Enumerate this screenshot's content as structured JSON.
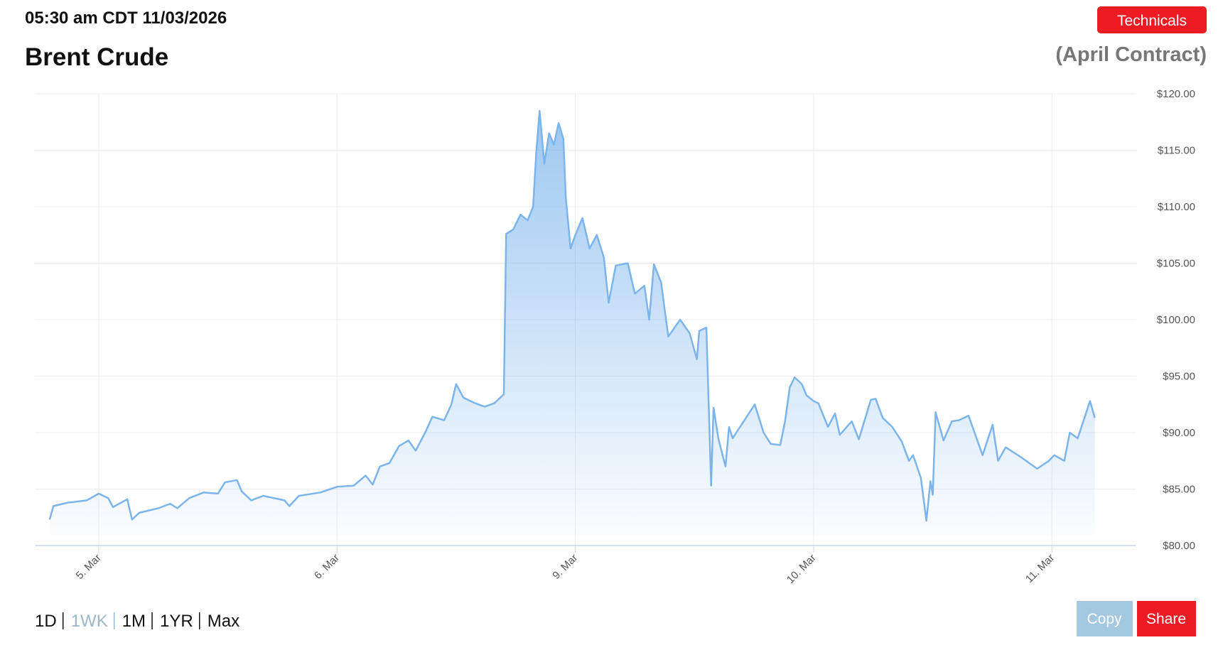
{
  "timestamp": "05:30 am CDT 11/03/2026",
  "technicals_button": "Technicals",
  "ranges": [
    "1D",
    "1WK",
    "1M",
    "1YR",
    "Max"
  ],
  "active_range_index": 1,
  "copy_button": "Copy",
  "share_button": "Share",
  "chart_data": {
    "type": "line",
    "title": "Brent Crude",
    "subtitle": "(April Contract)",
    "x": [
      -0.206,
      -0.19,
      -0.13,
      -0.05,
      0.0,
      0.04,
      0.06,
      0.12,
      0.14,
      0.17,
      0.25,
      0.3,
      0.33,
      0.38,
      0.44,
      0.5,
      0.53,
      0.58,
      0.6,
      0.64,
      0.69,
      0.78,
      0.8,
      0.84,
      0.93,
      1.0,
      1.07,
      1.12,
      1.15,
      1.18,
      1.22,
      1.26,
      1.3,
      1.33,
      1.37,
      1.4,
      1.45,
      1.48,
      1.5,
      1.53,
      1.58,
      1.62,
      1.66,
      1.7,
      1.71,
      1.74,
      1.77,
      1.8,
      1.823,
      1.836,
      1.85,
      1.87,
      1.89,
      1.91,
      1.93,
      1.95,
      1.96,
      1.98,
      2.0,
      2.03,
      2.06,
      2.09,
      2.12,
      2.14,
      2.17,
      2.22,
      2.25,
      2.29,
      2.31,
      2.33,
      2.36,
      2.39,
      2.44,
      2.48,
      2.51,
      2.52,
      2.55,
      2.57,
      2.58,
      2.6,
      2.63,
      2.645,
      2.66,
      2.753,
      2.79,
      2.82,
      2.86,
      2.88,
      2.9,
      2.92,
      2.95,
      2.97,
      3.0,
      3.02,
      3.06,
      3.09,
      3.11,
      3.16,
      3.19,
      3.24,
      3.26,
      3.29,
      3.33,
      3.37,
      3.4,
      3.417,
      3.45,
      3.473,
      3.49,
      3.5,
      3.512,
      3.545,
      3.58,
      3.61,
      3.65,
      3.709,
      3.751,
      3.774,
      3.806,
      3.872,
      3.938,
      3.987,
      4.01,
      4.052,
      4.075,
      4.108,
      4.16,
      4.18
    ],
    "series": [
      {
        "name": "Brent Crude",
        "color": "#7cb5ec",
        "values": [
          82.3,
          83.5,
          83.8,
          84.0,
          84.6,
          84.2,
          83.4,
          84.1,
          82.3,
          82.9,
          83.3,
          83.7,
          83.3,
          84.2,
          84.7,
          84.6,
          85.6,
          85.8,
          84.8,
          84.0,
          84.4,
          84.0,
          83.5,
          84.4,
          84.7,
          85.2,
          85.3,
          86.2,
          85.4,
          87.0,
          87.3,
          88.8,
          89.3,
          88.4,
          90.0,
          91.4,
          91.1,
          92.5,
          94.3,
          93.1,
          92.6,
          92.3,
          92.6,
          93.4,
          107.6,
          108.0,
          109.3,
          108.8,
          110.0,
          114.8,
          118.5,
          113.8,
          116.5,
          115.5,
          117.4,
          116.0,
          110.8,
          106.3,
          107.5,
          109.0,
          106.3,
          107.5,
          105.5,
          101.5,
          104.8,
          105.0,
          102.3,
          103.0,
          100.0,
          104.9,
          103.3,
          98.5,
          100.0,
          98.8,
          96.5,
          99.0,
          99.3,
          85.3,
          92.2,
          89.5,
          87.0,
          90.5,
          89.5,
          92.5,
          90.0,
          89.0,
          88.9,
          91.0,
          94.0,
          94.9,
          94.3,
          93.3,
          92.8,
          92.6,
          90.5,
          91.7,
          89.8,
          91.0,
          89.4,
          92.9,
          93.0,
          91.3,
          90.5,
          89.2,
          87.5,
          88.0,
          86.0,
          82.2,
          85.7,
          84.5,
          91.8,
          89.3,
          91.0,
          91.1,
          91.5,
          88.0,
          90.7,
          87.5,
          88.7,
          87.8,
          86.8,
          87.5,
          88.0,
          87.5,
          90.0,
          89.5,
          92.8,
          91.3
        ]
      }
    ],
    "xlim": [
      -0.268,
      4.354
    ],
    "xticks": [
      {
        "value": 0,
        "label": "5. Mar"
      },
      {
        "value": 1,
        "label": "6. Mar"
      },
      {
        "value": 2,
        "label": "9. Mar"
      },
      {
        "value": 3,
        "label": "10. Mar"
      },
      {
        "value": 4,
        "label": "11. Mar"
      }
    ],
    "ylim": [
      80,
      120
    ],
    "yticks": [
      {
        "value": 80,
        "label": "$80.00"
      },
      {
        "value": 85,
        "label": "$85.00"
      },
      {
        "value": 90,
        "label": "$90.00"
      },
      {
        "value": 95,
        "label": "$95.00"
      },
      {
        "value": 100,
        "label": "$100.00"
      },
      {
        "value": 105,
        "label": "$105.00"
      },
      {
        "value": 110,
        "label": "$110.00"
      },
      {
        "value": 115,
        "label": "$115.00"
      },
      {
        "value": 120,
        "label": "$120.00"
      }
    ],
    "grid": true
  }
}
